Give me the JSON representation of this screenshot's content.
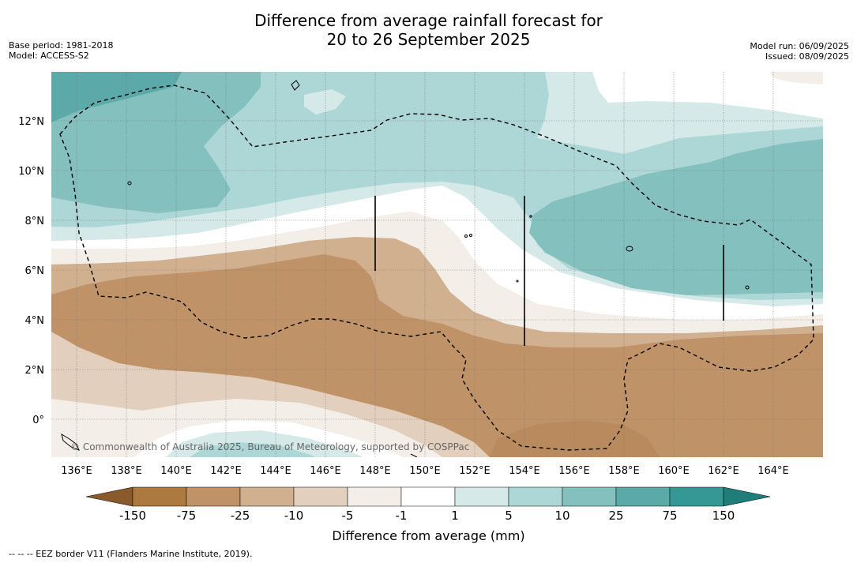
{
  "title_line1": "Difference from average rainfall forecast for",
  "title_line2": "20 to 26 September 2025",
  "meta_left": [
    "Base period: 1981-2018",
    "Model: ACCESS-S2"
  ],
  "meta_right": [
    "Model run: 06/09/2025",
    "Issued: 08/09/2025"
  ],
  "x_ticks": [
    "136°E",
    "138°E",
    "140°E",
    "142°E",
    "144°E",
    "146°E",
    "148°E",
    "150°E",
    "152°E",
    "154°E",
    "156°E",
    "158°E",
    "160°E",
    "162°E",
    "164°E"
  ],
  "y_ticks": [
    "12°N",
    "10°N",
    "8°N",
    "6°N",
    "4°N",
    "2°N",
    "0°"
  ],
  "copyright": "© Commonwealth of Australia 2025, Bureau of Meteorology, supported by COSPPac",
  "colorbar": {
    "tick_labels": [
      "-150",
      "-75",
      "-25",
      "-10",
      "-5",
      "-1",
      "1",
      "5",
      "10",
      "25",
      "75",
      "150"
    ],
    "colors": [
      "#8a5a2b",
      "#ac7941",
      "#bf9367",
      "#d1b090",
      "#e3cfbd",
      "#f3eee8",
      "#ffffff",
      "#d5e9e8",
      "#add7d6",
      "#83c0be",
      "#5ba9a9",
      "#359894",
      "#1f7e79"
    ],
    "label": "Difference from average (mm)"
  },
  "legend_line": "--  --  -- EEZ border V11 (Flanders Marine Institute, 2019).",
  "map_colors": {
    "deep_brown": "#bf9367",
    "mid_brown": "#d1b090",
    "light_brown": "#e3cfbd",
    "pale_brown": "#f3eee8",
    "white": "#ffffff",
    "pale_teal": "#d5e9e8",
    "light_teal": "#add7d6",
    "mid_teal": "#83c0be",
    "deep_teal": "#5ba9a9"
  }
}
